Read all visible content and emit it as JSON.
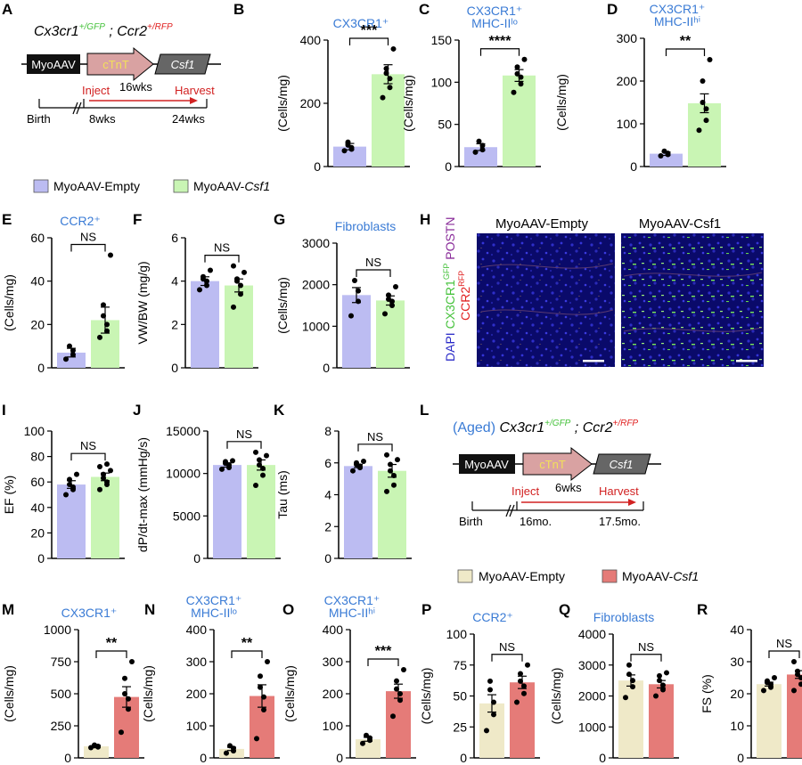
{
  "colors": {
    "empty_young": "#bcbcf2",
    "csf1_young": "#c9f5b4",
    "empty_aged": "#efe9c8",
    "csf1_aged": "#e57b78",
    "panel_title": "#3a7bd5",
    "gfp": "#46c23c",
    "rfp": "#e02020",
    "dapi": "#2a2ac8",
    "postn": "#8a2d9a",
    "arrow": "#d22222"
  },
  "panel_letters": [
    "A",
    "B",
    "C",
    "D",
    "E",
    "F",
    "G",
    "H",
    "I",
    "J",
    "K",
    "L",
    "M",
    "N",
    "O",
    "P",
    "Q",
    "R"
  ],
  "schematics": {
    "young": {
      "genotype_part1": "Cx3cr1",
      "genotype_sup1": "+/GFP",
      "genotype_sep": " ; ",
      "genotype_part2": "Ccr2",
      "genotype_sup2": "+/RFP",
      "prefix": "",
      "construct": [
        "MyoAAV",
        "cTnT",
        "Csf1"
      ],
      "inject_label": "Inject",
      "harvest_label": "Harvest",
      "interval_label": "16wks",
      "birth_label": "Birth",
      "start_label": "8wks",
      "end_label": "24wks"
    },
    "aged": {
      "genotype_part1": "Cx3cr1",
      "genotype_sup1": "+/GFP",
      "genotype_sep": " ; ",
      "genotype_part2": "Ccr2",
      "genotype_sup2": "+/RFP",
      "prefix": "(Aged)",
      "construct": [
        "MyoAAV",
        "cTnT",
        "Csf1"
      ],
      "inject_label": "Inject",
      "harvest_label": "Harvest",
      "interval_label": "6wks",
      "birth_label": "Birth",
      "start_label": "16mo.",
      "end_label": "17.5mo."
    }
  },
  "legends": {
    "young": [
      "MyoAAV-Empty",
      "MyoAAV-",
      "Csf1"
    ],
    "aged": [
      "MyoAAV-Empty",
      "MyoAAV-",
      "Csf1"
    ]
  },
  "micrograph": {
    "titles": [
      "MyoAAV-Empty",
      "MyoAAV-Csf1"
    ],
    "stain_line1": [
      "DAPI ",
      "CX3CR1",
      "GFP",
      " POSTN"
    ],
    "stain_line2": [
      "CCR2",
      "RFP"
    ]
  },
  "chart_data": [
    {
      "panel": "B",
      "type": "bar",
      "title": "CX3CR1⁺",
      "ylabel": "(Cells/mg)",
      "ylim": [
        0,
        400
      ],
      "yticks": [
        "0",
        "200",
        "400"
      ],
      "sig": "***",
      "series": [
        {
          "name": "MyoAAV-Empty",
          "mean": 63,
          "sem": 10,
          "points": [
            50,
            55,
            60,
            68,
            77
          ]
        },
        {
          "name": "MyoAAV-Csf1",
          "mean": 292,
          "sem": 30,
          "points": [
            218,
            250,
            278,
            295,
            310,
            372
          ]
        }
      ]
    },
    {
      "panel": "C",
      "type": "bar",
      "title": "CX3CR1⁺ MHC-IIˡᵒ",
      "ylabel": "(Cells/mg)",
      "ylim": [
        0,
        150
      ],
      "yticks": [
        "0",
        "50",
        "100",
        "150"
      ],
      "sig": "****",
      "series": [
        {
          "name": "MyoAAV-Empty",
          "mean": 23,
          "sem": 4,
          "points": [
            17,
            20,
            25,
            30
          ]
        },
        {
          "name": "MyoAAV-Csf1",
          "mean": 108,
          "sem": 7,
          "points": [
            88,
            98,
            106,
            110,
            118,
            127
          ]
        }
      ]
    },
    {
      "panel": "D",
      "type": "bar",
      "title": "CX3CR1⁺ MHC-IIʰⁱ",
      "ylabel": "(Cells/mg)",
      "ylim": [
        0,
        300
      ],
      "yticks": [
        "0",
        "100",
        "200",
        "300"
      ],
      "sig": "**",
      "series": [
        {
          "name": "MyoAAV-Empty",
          "mean": 30,
          "sem": 4,
          "points": [
            25,
            28,
            31,
            36
          ]
        },
        {
          "name": "MyoAAV-Csf1",
          "mean": 148,
          "sem": 22,
          "points": [
            85,
            108,
            135,
            150,
            200,
            250
          ]
        }
      ]
    },
    {
      "panel": "E",
      "type": "bar",
      "title": "CCR2⁺",
      "ylabel": "(Cells/mg)",
      "ylim": [
        0,
        60
      ],
      "yticks": [
        "0",
        "20",
        "40",
        "60"
      ],
      "sig": "NS",
      "series": [
        {
          "name": "MyoAAV-Empty",
          "mean": 7,
          "sem": 2,
          "points": [
            4,
            6,
            8,
            10
          ]
        },
        {
          "name": "MyoAAV-Csf1",
          "mean": 22,
          "sem": 6,
          "points": [
            14,
            17,
            20,
            24,
            29,
            52
          ]
        }
      ]
    },
    {
      "panel": "F",
      "type": "bar",
      "title": "",
      "ylabel": "VW/BW (mg/g)",
      "ylim": [
        0,
        6
      ],
      "yticks": [
        "0",
        "2",
        "4",
        "6"
      ],
      "sig": "NS",
      "series": [
        {
          "name": "MyoAAV-Empty",
          "mean": 4.0,
          "sem": 0.2,
          "points": [
            3.6,
            3.8,
            4.0,
            4.1,
            4.2,
            4.5
          ]
        },
        {
          "name": "MyoAAV-Csf1",
          "mean": 3.8,
          "sem": 0.3,
          "points": [
            2.8,
            3.4,
            3.8,
            4.0,
            4.1,
            4.4,
            4.7
          ]
        }
      ]
    },
    {
      "panel": "G",
      "type": "bar",
      "title": "Fibroblasts",
      "ylabel": "(Cells/mg)",
      "ylim": [
        0,
        3000
      ],
      "yticks": [
        "0",
        "1000",
        "2000",
        "3000"
      ],
      "sig": "NS",
      "series": [
        {
          "name": "MyoAAV-Empty",
          "mean": 1750,
          "sem": 180,
          "points": [
            1250,
            1600,
            1850,
            2100
          ]
        },
        {
          "name": "MyoAAV-Csf1",
          "mean": 1620,
          "sem": 110,
          "points": [
            1300,
            1500,
            1600,
            1650,
            1750,
            1950
          ]
        }
      ]
    },
    {
      "panel": "I",
      "type": "bar",
      "title": "",
      "ylabel": "EF (%)",
      "ylim": [
        0,
        100
      ],
      "yticks": [
        "0",
        "20",
        "40",
        "60",
        "80",
        "100"
      ],
      "sig": "NS",
      "series": [
        {
          "name": "MyoAAV-Empty",
          "mean": 58,
          "sem": 3,
          "points": [
            50,
            54,
            56,
            58,
            62,
            66
          ]
        },
        {
          "name": "MyoAAV-Csf1",
          "mean": 64,
          "sem": 3,
          "points": [
            54,
            58,
            60,
            63,
            66,
            69,
            72,
            74
          ]
        }
      ]
    },
    {
      "panel": "J",
      "type": "bar",
      "title": "",
      "ylabel": "dP/dt-max (mmHg/s)",
      "ylim": [
        0,
        15000
      ],
      "yticks": [
        "0",
        "5000",
        "10000",
        "15000"
      ],
      "sig": "NS",
      "series": [
        {
          "name": "MyoAAV-Empty",
          "mean": 11000,
          "sem": 250,
          "points": [
            10500,
            10700,
            11000,
            11200,
            11400,
            11500
          ]
        },
        {
          "name": "MyoAAV-Csf1",
          "mean": 11000,
          "sem": 600,
          "points": [
            8600,
            9800,
            10600,
            11000,
            11600,
            12100,
            12500
          ]
        }
      ]
    },
    {
      "panel": "K",
      "type": "bar",
      "title": "",
      "ylabel": "Tau (ms)",
      "ylim": [
        0,
        8
      ],
      "yticks": [
        "0",
        "2",
        "4",
        "6",
        "8"
      ],
      "sig": "NS",
      "series": [
        {
          "name": "MyoAAV-Empty",
          "mean": 5.8,
          "sem": 0.1,
          "points": [
            5.5,
            5.7,
            5.8,
            5.9,
            6.0,
            6.1
          ]
        },
        {
          "name": "MyoAAV-Csf1",
          "mean": 5.5,
          "sem": 0.4,
          "points": [
            4.2,
            4.6,
            5.2,
            5.5,
            5.9,
            6.2,
            6.5
          ]
        }
      ]
    },
    {
      "panel": "M",
      "type": "bar",
      "title": "CX3CR1⁺",
      "ylabel": "(Cells/mg)",
      "ylim": [
        0,
        1000
      ],
      "yticks": [
        "0",
        "250",
        "500",
        "750",
        "1000"
      ],
      "sig": "**",
      "series": [
        {
          "name": "MyoAAV-Empty",
          "mean": 90,
          "sem": 8,
          "points": [
            80,
            85,
            90,
            95,
            100
          ]
        },
        {
          "name": "MyoAAV-Csf1",
          "mean": 475,
          "sem": 80,
          "points": [
            200,
            380,
            460,
            500,
            620,
            750
          ]
        }
      ]
    },
    {
      "panel": "N",
      "type": "bar",
      "title": "CX3CR1⁺ MHC-IIˡᵒ",
      "ylabel": "(Cells/mg)",
      "ylim": [
        0,
        400
      ],
      "yticks": [
        "0",
        "100",
        "200",
        "300",
        "400"
      ],
      "sig": "**",
      "series": [
        {
          "name": "MyoAAV-Empty",
          "mean": 28,
          "sem": 5,
          "points": [
            15,
            22,
            30,
            38
          ]
        },
        {
          "name": "MyoAAV-Csf1",
          "mean": 193,
          "sem": 35,
          "points": [
            60,
            150,
            190,
            220,
            255,
            300
          ]
        }
      ]
    },
    {
      "panel": "O",
      "type": "bar",
      "title": "CX3CR1⁺ MHC-IIʰⁱ",
      "ylabel": "(Cells/mg)",
      "ylim": [
        0,
        400
      ],
      "yticks": [
        "0",
        "100",
        "200",
        "300",
        "400"
      ],
      "sig": "***",
      "series": [
        {
          "name": "MyoAAV-Empty",
          "mean": 58,
          "sem": 6,
          "points": [
            45,
            55,
            62,
            70
          ]
        },
        {
          "name": "MyoAAV-Csf1",
          "mean": 208,
          "sem": 22,
          "points": [
            130,
            180,
            200,
            215,
            240,
            275
          ]
        }
      ]
    },
    {
      "panel": "P",
      "type": "bar",
      "title": "CCR2⁺",
      "ylabel": "(Cells/mg)",
      "ylim": [
        0,
        100
      ],
      "yticks": [
        "0",
        "25",
        "50",
        "75",
        "100"
      ],
      "sig": "NS",
      "series": [
        {
          "name": "MyoAAV-Empty",
          "mean": 44,
          "sem": 7,
          "points": [
            22,
            35,
            45,
            55,
            62
          ]
        },
        {
          "name": "MyoAAV-Csf1",
          "mean": 61,
          "sem": 5,
          "points": [
            45,
            52,
            58,
            62,
            68,
            75
          ]
        }
      ]
    },
    {
      "panel": "Q",
      "type": "bar",
      "title": "Fibroblasts",
      "ylabel": "(Cells/mg)",
      "ylim": [
        0,
        4000
      ],
      "yticks": [
        "0",
        "1000",
        "2000",
        "3000",
        "4000"
      ],
      "sig": "NS",
      "series": [
        {
          "name": "MyoAAV-Empty",
          "mean": 2500,
          "sem": 180,
          "points": [
            1950,
            2300,
            2500,
            2700,
            3000
          ]
        },
        {
          "name": "MyoAAV-Csf1",
          "mean": 2380,
          "sem": 120,
          "points": [
            2000,
            2200,
            2350,
            2500,
            2650,
            2750
          ]
        }
      ]
    },
    {
      "panel": "R",
      "type": "bar",
      "title": "",
      "ylabel": "FS (%)",
      "ylim": [
        0,
        40
      ],
      "yticks": [
        "0",
        "10",
        "20",
        "30",
        "40"
      ],
      "sig": "NS",
      "series": [
        {
          "name": "MyoAAV-Empty",
          "mean": 23,
          "sem": 0.6,
          "points": [
            21,
            22,
            23,
            23.5,
            24,
            25
          ]
        },
        {
          "name": "MyoAAV-Csf1",
          "mean": 26,
          "sem": 1.2,
          "points": [
            21,
            23,
            25,
            26,
            27,
            28,
            30
          ]
        }
      ]
    }
  ]
}
